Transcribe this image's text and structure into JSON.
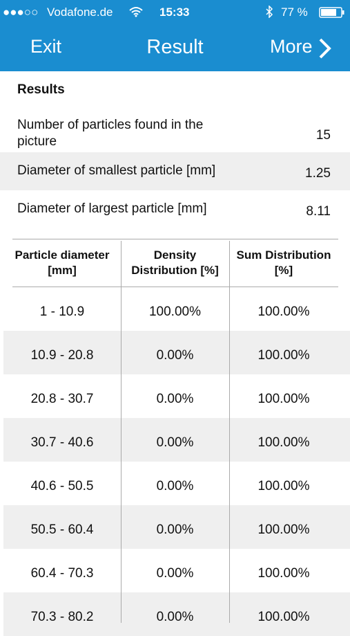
{
  "status_bar": {
    "carrier": "Vodafone.de",
    "time": "15:33",
    "battery": "77 %"
  },
  "nav_bar": {
    "left_button": "Exit",
    "title": "Result",
    "right_button": "More"
  },
  "results": {
    "heading": "Results",
    "rows": [
      [
        "Number of particles found in the picture",
        "15"
      ],
      [
        "Diameter of smallest particle [mm]",
        "1.25"
      ],
      [
        "Diameter of largest particle [mm]",
        "8.11"
      ]
    ]
  },
  "table": {
    "header": [
      "Particle diameter [mm]",
      "Density Distribution [%]",
      "Sum Distribution [%]"
    ],
    "rows": [
      [
        "1 - 10.9",
        "100.00%",
        "100.00%"
      ],
      [
        "10.9 - 20.8",
        "0.00%",
        "100.00%"
      ],
      [
        "20.8 - 30.7",
        "0.00%",
        "100.00%"
      ],
      [
        "30.7 - 40.6",
        "0.00%",
        "100.00%"
      ],
      [
        "40.6 - 50.5",
        "0.00%",
        "100.00%"
      ],
      [
        "50.5 - 60.4",
        "0.00%",
        "100.00%"
      ],
      [
        "60.4 - 70.3",
        "0.00%",
        "100.00%"
      ],
      [
        "70.3 - 80.2",
        "0.00%",
        "100.00%"
      ]
    ]
  }
}
